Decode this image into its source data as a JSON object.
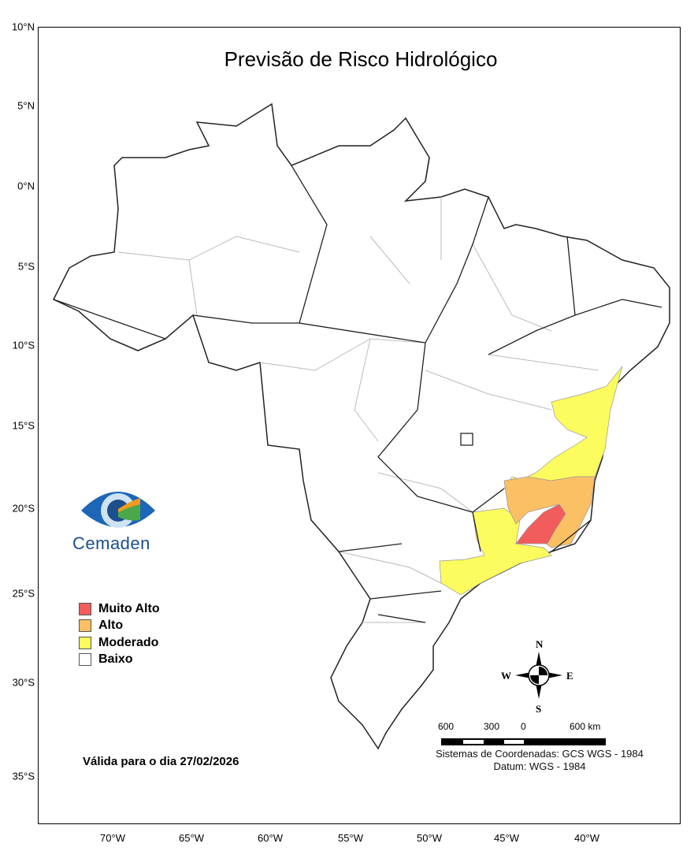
{
  "title": "Previsão de Risco Hidrológico",
  "lat_labels": [
    "10°N",
    "5°N",
    "0°N",
    "5°S",
    "10°S",
    "15°S",
    "20°S",
    "25°S",
    "30°S",
    "35°S"
  ],
  "lon_labels": [
    "70°W",
    "65°W",
    "60°W",
    "55°W",
    "50°W",
    "45°W",
    "40°W"
  ],
  "legend": [
    {
      "label": "Muito Alto",
      "color": "#f25c5c"
    },
    {
      "label": "Alto",
      "color": "#fbbf64"
    },
    {
      "label": "Moderado",
      "color": "#fcfc5e"
    },
    {
      "label": "Baixo",
      "color": "#ffffff"
    }
  ],
  "logo": {
    "text": "Cemaden"
  },
  "valid_text": "Válida para o dia 27/02/2026",
  "compass": {
    "n": "N",
    "s": "S",
    "e": "E",
    "w": "W"
  },
  "scale": {
    "labels": [
      "600",
      "300",
      "0",
      "600 km"
    ]
  },
  "coord_system": "Sistemas de Coordenadas: GCS WGS - 1984",
  "datum": "Datum: WGS - 1984"
}
